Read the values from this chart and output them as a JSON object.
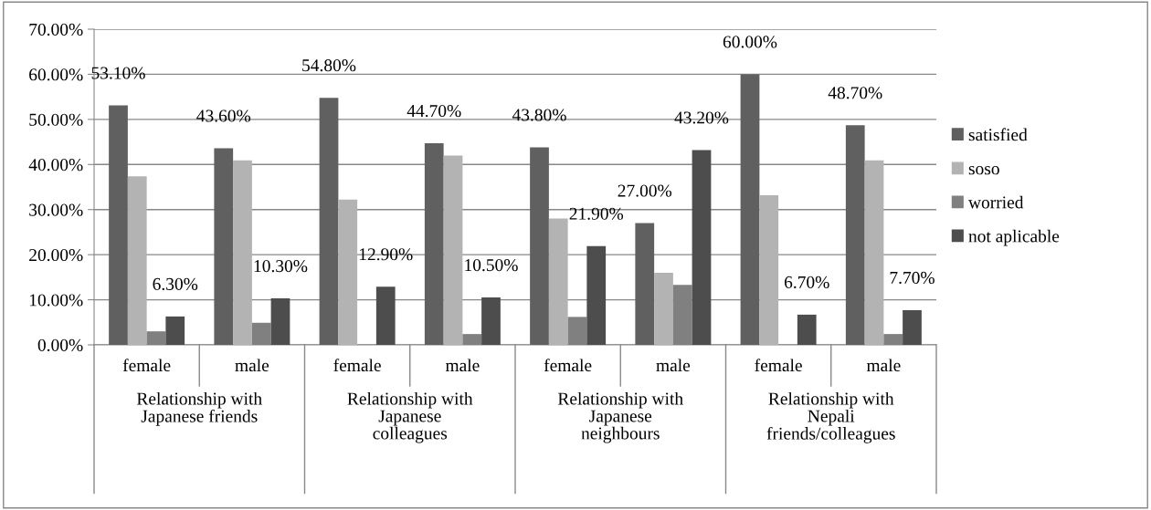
{
  "chart_data": {
    "type": "bar",
    "categories": [
      "female",
      "male",
      "female",
      "male",
      "female",
      "male",
      "female",
      "male"
    ],
    "annotations": [
      "Relationship with\nJapanese friends",
      "Relationship with\nJapanese\ncolleagues",
      "Relationship with\nJapanese\nneighbours",
      "Relationship with\nNepali\nfriends/colleagues"
    ],
    "series": [
      {
        "name": "satisfied",
        "color": "#606060",
        "values": [
          53.1,
          43.6,
          54.8,
          44.7,
          43.8,
          27.0,
          60.0,
          48.7
        ],
        "value_labels": [
          "53.10%",
          "43.60%",
          "54.80%",
          "44.70%",
          "43.80%",
          "27.00%",
          "60.00%",
          "48.70%"
        ]
      },
      {
        "name": "soso",
        "color": "#b3b3b3",
        "values": [
          37.4,
          40.9,
          32.2,
          42.0,
          28.0,
          16.0,
          33.2,
          40.9
        ]
      },
      {
        "name": "worried",
        "color": "#808080",
        "values": [
          3.0,
          4.9,
          0,
          2.4,
          6.2,
          13.3,
          0,
          2.4
        ]
      },
      {
        "name": "not aplicable",
        "color": "#4d4d4d",
        "values": [
          6.3,
          10.3,
          12.9,
          10.5,
          21.9,
          43.2,
          6.7,
          7.7
        ],
        "value_labels": [
          "6.30%",
          "10.30%",
          "12.90%",
          "10.50%",
          "21.90%",
          "43.20%",
          "6.70%",
          "7.70%"
        ]
      }
    ],
    "ylim": [
      0,
      70
    ],
    "yticks": [
      {
        "value": 0,
        "label": "0.00%"
      },
      {
        "value": 10,
        "label": "10.00%"
      },
      {
        "value": 20,
        "label": "20.00%"
      },
      {
        "value": 30,
        "label": "30.00%"
      },
      {
        "value": 40,
        "label": "40.00%"
      },
      {
        "value": 50,
        "label": "50.00%"
      },
      {
        "value": 60,
        "label": "60.00%"
      },
      {
        "value": 70,
        "label": "70.00%"
      }
    ],
    "grid": "y",
    "legend": "right"
  }
}
